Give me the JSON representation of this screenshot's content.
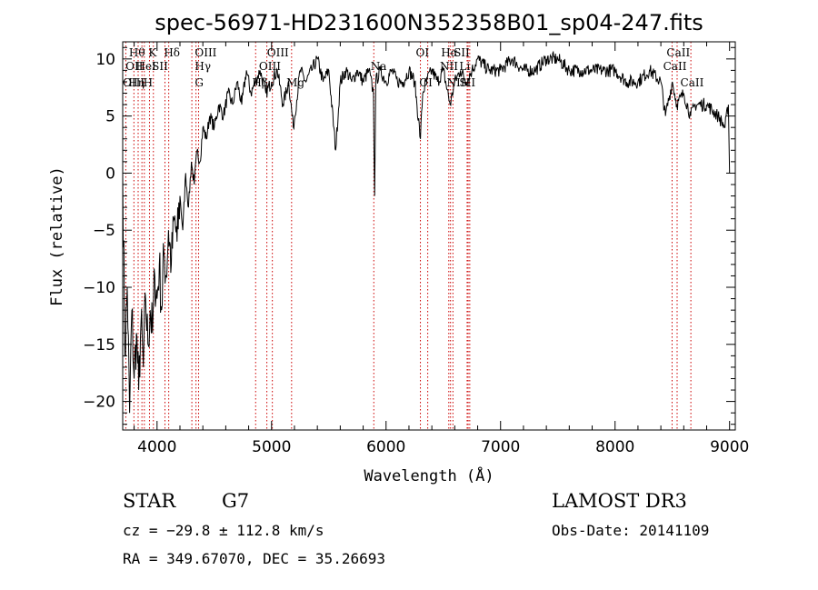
{
  "chart_data": {
    "type": "line",
    "title": "spec-56971-HD231600N352358B01_sp04-247.fits",
    "xlabel": "Wavelength (Å)",
    "ylabel": "Flux (relative)",
    "xlim": [
      3700,
      9050
    ],
    "ylim": [
      -22.5,
      11.5
    ],
    "xticks": [
      4000,
      5000,
      6000,
      7000,
      8000,
      9000
    ],
    "yticks": [
      -20,
      -15,
      -10,
      -5,
      0,
      5,
      10
    ],
    "line_color": "#000000",
    "marker_color": "#cc0000",
    "series": [
      {
        "name": "flux",
        "x": [
          3700,
          3720,
          3740,
          3760,
          3780,
          3800,
          3820,
          3840,
          3860,
          3880,
          3900,
          3920,
          3940,
          3960,
          3980,
          4000,
          4020,
          4040,
          4060,
          4080,
          4100,
          4125,
          4150,
          4175,
          4200,
          4225,
          4250,
          4275,
          4300,
          4325,
          4350,
          4375,
          4400,
          4430,
          4460,
          4500,
          4540,
          4580,
          4620,
          4660,
          4700,
          4740,
          4780,
          4820,
          4860,
          4900,
          4950,
          5000,
          5050,
          5100,
          5150,
          5190,
          5250,
          5300,
          5350,
          5400,
          5450,
          5500,
          5560,
          5600,
          5650,
          5700,
          5750,
          5800,
          5850,
          5890,
          5900,
          5910,
          5950,
          6000,
          6050,
          6100,
          6150,
          6200,
          6250,
          6300,
          6320,
          6350,
          6400,
          6450,
          6500,
          6560,
          6600,
          6650,
          6700,
          6750,
          6800,
          6900,
          7000,
          7100,
          7200,
          7300,
          7400,
          7500,
          7600,
          7700,
          7800,
          7900,
          8000,
          8100,
          8200,
          8300,
          8400,
          8440,
          8500,
          8540,
          8600,
          8660,
          8700,
          8800,
          8900,
          8960,
          8990,
          9000
        ],
        "y": [
          0,
          -16,
          -10,
          -21,
          -12,
          -18,
          -14,
          -19,
          -13,
          -17,
          -11,
          -15,
          -12,
          -14,
          -9,
          -11,
          -8,
          -12,
          -7,
          -9,
          -5,
          -8,
          -4,
          -6,
          -2,
          -5,
          0,
          -3,
          1,
          -1,
          2,
          1,
          4,
          3,
          5,
          4,
          6,
          5,
          7,
          6,
          8,
          6,
          9,
          7,
          8,
          9,
          7,
          8,
          9,
          6,
          8,
          4,
          9,
          8,
          9,
          10,
          8,
          9,
          2,
          8,
          9,
          8,
          9,
          8,
          9,
          7,
          -2,
          8,
          9,
          8,
          9,
          8,
          8,
          9,
          8,
          3,
          7,
          8,
          9,
          8,
          9,
          6,
          8,
          9,
          8,
          9,
          10,
          9,
          9,
          10,
          9,
          9,
          10,
          10,
          9,
          9,
          9,
          9,
          9,
          8,
          8,
          9,
          8,
          5,
          8,
          6,
          7,
          5,
          6,
          6,
          5,
          4,
          6,
          0
        ],
        "range_label": "",
        "spectrum_label": ""
      }
    ],
    "lines": [
      {
        "label": "Hθ",
        "wavelength": 3798,
        "label_wl": 3755,
        "row": 0
      },
      {
        "label": "K",
        "wavelength": 3934,
        "label_wl": 3925,
        "row": 0
      },
      {
        "label": "Hδ",
        "wavelength": 4102,
        "label_wl": 4060,
        "row": 0
      },
      {
        "label": "OII",
        "wavelength": 3727,
        "label_wl": 3725,
        "row": 1
      },
      {
        "label": "HeI",
        "wavelength": 3889,
        "label_wl": 3815,
        "row": 1
      },
      {
        "label": "SII",
        "wavelength": 4069,
        "label_wl": 3955,
        "row": 1
      },
      {
        "label": "OIII",
        "wavelength": 3868,
        "label_wl": 3700,
        "row": 2
      },
      {
        "label": "Hη",
        "wavelength": 3835,
        "label_wl": 3750,
        "row": 2
      },
      {
        "label": "H",
        "wavelength": 3968,
        "label_wl": 3880,
        "row": 2
      },
      {
        "label": "OIII",
        "wavelength": 4363,
        "label_wl": 4330,
        "row": 0
      },
      {
        "label": "Hγ",
        "wavelength": 4340,
        "label_wl": 4330,
        "row": 1
      },
      {
        "label": "G",
        "wavelength": 4304,
        "label_wl": 4330,
        "row": 2
      },
      {
        "label": "OIII",
        "wavelength": 5007,
        "label_wl": 4960,
        "row": 0
      },
      {
        "label": "OIII",
        "wavelength": 4959,
        "label_wl": 4890,
        "row": 1
      },
      {
        "label": "Hβ",
        "wavelength": 4861,
        "label_wl": 4830,
        "row": 2
      },
      {
        "label": "Mg",
        "wavelength": 5175,
        "label_wl": 5130,
        "row": 2
      },
      {
        "label": "Na",
        "wavelength": 5893,
        "label_wl": 5865,
        "row": 1
      },
      {
        "label": "OI",
        "wavelength": 6300,
        "label_wl": 6260,
        "row": 0
      },
      {
        "label": "OI",
        "wavelength": 6364,
        "label_wl": 6290,
        "row": 2
      },
      {
        "label": "Hα",
        "wavelength": 6563,
        "label_wl": 6480,
        "row": 0
      },
      {
        "label": "SII",
        "wavelength": 6717,
        "label_wl": 6590,
        "row": 0
      },
      {
        "label": "NII",
        "wavelength": 6548,
        "label_wl": 6470,
        "row": 1
      },
      {
        "label": "Li",
        "wavelength": 6708,
        "label_wl": 6640,
        "row": 1
      },
      {
        "label": "NII",
        "wavelength": 6584,
        "label_wl": 6530,
        "row": 2
      },
      {
        "label": "SII",
        "wavelength": 6731,
        "label_wl": 6640,
        "row": 2
      },
      {
        "label": "CaII",
        "wavelength": 8498,
        "label_wl": 8450,
        "row": 0
      },
      {
        "label": "CaII",
        "wavelength": 8542,
        "label_wl": 8420,
        "row": 1
      },
      {
        "label": "CaII",
        "wavelength": 8662,
        "label_wl": 8570,
        "row": 2
      }
    ]
  },
  "info": {
    "object_type": "STAR",
    "subclass": "G7",
    "survey": "LAMOST DR3",
    "redshift": "cz = −29.8 ± 112.8 km/s",
    "obs_date": "Obs-Date: 20141109",
    "coords": "RA = 349.67070, DEC =  35.26693"
  }
}
